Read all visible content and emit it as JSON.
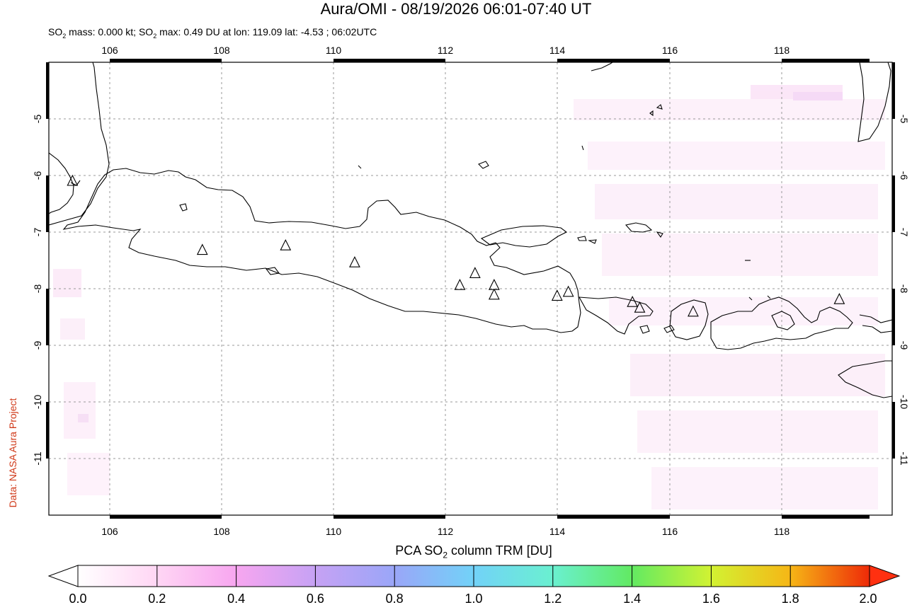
{
  "title": "Aura/OMI - 08/19/2026 06:01-07:40 UT",
  "subtitle": {
    "p1": "SO",
    "sub1": "2",
    "p2": " mass: 0.000 kt; SO",
    "sub2": "2",
    "p3": " max: 0.49 DU at lon: 119.09 lat: -4.53 ; 06:02UTC"
  },
  "credit": "Data: NASA Aura Project",
  "map": {
    "lon_range": [
      105,
      120
    ],
    "lat_range": [
      -12,
      -4
    ],
    "lon_ticks": [
      "106",
      "108",
      "110",
      "112",
      "114",
      "116",
      "118"
    ],
    "lat_ticks": [
      "-5",
      "-6",
      "-7",
      "-8",
      "-9",
      "-10",
      "-11"
    ],
    "gridlines": true
  },
  "colorbar": {
    "title_pre": "PCA SO",
    "title_sub": "2",
    "title_post": " column TRM [DU]",
    "labels": [
      "0.0",
      "0.2",
      "0.4",
      "0.6",
      "0.8",
      "1.0",
      "1.2",
      "1.4",
      "1.6",
      "1.8",
      "2.0"
    ],
    "colors": [
      "#ffffff",
      "#ffd6f4",
      "#f7a6f0",
      "#c6a2f4",
      "#9aa6f8",
      "#72d2f8",
      "#6af0d0",
      "#62ea62",
      "#d2f232",
      "#f6b616",
      "#ee2a08",
      "#ff3010"
    ]
  },
  "volcanoes": [
    {
      "lon": 105.42,
      "lat": -6.1
    },
    {
      "lon": 107.73,
      "lat": -7.32
    },
    {
      "lon": 109.21,
      "lat": -7.24
    },
    {
      "lon": 110.44,
      "lat": -7.54
    },
    {
      "lon": 112.31,
      "lat": -7.94
    },
    {
      "lon": 112.58,
      "lat": -7.73
    },
    {
      "lon": 112.92,
      "lat": -7.94
    },
    {
      "lon": 112.92,
      "lat": -8.11
    },
    {
      "lon": 114.04,
      "lat": -8.13
    },
    {
      "lon": 114.24,
      "lat": -8.06
    },
    {
      "lon": 115.38,
      "lat": -8.24
    },
    {
      "lon": 115.51,
      "lat": -8.34
    },
    {
      "lon": 116.46,
      "lat": -8.41
    },
    {
      "lon": 119.06,
      "lat": -8.19
    }
  ]
}
